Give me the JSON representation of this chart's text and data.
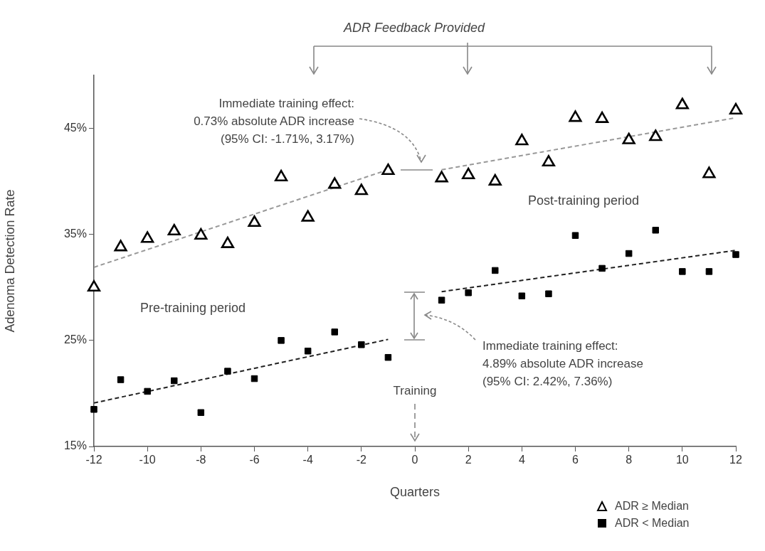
{
  "chart_data": {
    "type": "scatter",
    "xlabel": "Quarters",
    "ylabel": "Adenoma Detection Rate",
    "x": [
      -12,
      -11,
      -10,
      -9,
      -8,
      -7,
      -6,
      -5,
      -4,
      -3,
      -2,
      -1,
      1,
      2,
      3,
      4,
      5,
      6,
      7,
      8,
      9,
      10,
      11,
      12
    ],
    "series": [
      {
        "name": "ADR ≥ Median",
        "marker": "triangle",
        "color": "#000000",
        "values": [
          30.0,
          33.8,
          34.6,
          35.3,
          34.9,
          34.1,
          36.1,
          40.4,
          36.6,
          39.7,
          39.1,
          41.0,
          40.3,
          40.6,
          40.0,
          43.8,
          41.8,
          46.0,
          45.9,
          43.9,
          44.2,
          47.2,
          40.7,
          46.7
        ]
      },
      {
        "name": "ADR < Median",
        "marker": "square",
        "color": "#000000",
        "values": [
          18.5,
          21.3,
          20.2,
          21.2,
          18.2,
          22.1,
          21.4,
          25.0,
          24.0,
          25.8,
          24.6,
          23.4,
          28.8,
          29.5,
          31.6,
          29.2,
          29.4,
          34.9,
          31.8,
          33.2,
          35.4,
          31.5,
          31.5,
          33.1
        ]
      },
      {
        "type": "line",
        "marker": "none",
        "line_style": "dashed",
        "color": "#999999",
        "x": [
          -12,
          -1
        ],
        "values": [
          31.9,
          41.1
        ]
      },
      {
        "type": "line",
        "marker": "none",
        "line_style": "dashed",
        "color": "#999999",
        "x": [
          1,
          12
        ],
        "values": [
          41.1,
          46.0
        ]
      },
      {
        "type": "line",
        "marker": "none",
        "line_style": "dashed",
        "color": "#222222",
        "x": [
          -12,
          -1
        ],
        "values": [
          19.1,
          25.1
        ]
      },
      {
        "type": "line",
        "marker": "none",
        "line_style": "dashed",
        "color": "#222222",
        "x": [
          1,
          12
        ],
        "values": [
          29.6,
          33.5
        ]
      }
    ],
    "xlim": [
      -12,
      12
    ],
    "xticks": [
      -12,
      -10,
      -8,
      -6,
      -4,
      -2,
      0,
      2,
      4,
      6,
      8,
      10,
      12
    ],
    "ylim": [
      15,
      50
    ],
    "yticks": [
      {
        "value": 15,
        "label": "15%"
      },
      {
        "value": 25,
        "label": "25%"
      },
      {
        "value": 35,
        "label": "35%"
      },
      {
        "value": 45,
        "label": "45%"
      }
    ],
    "grid": false,
    "legend": "bottom right",
    "annotations": [
      "ADR Feedback Provided",
      "Immediate training effect:\n0.73% absolute ADR increase\n(95% CI: -1.71%, 3.17%)",
      "Immediate training effect:\n4.89% absolute ADR increase\n(95% CI: 2.42%, 7.36%)",
      "Pre-training period",
      "Post-training period",
      "Training"
    ]
  }
}
